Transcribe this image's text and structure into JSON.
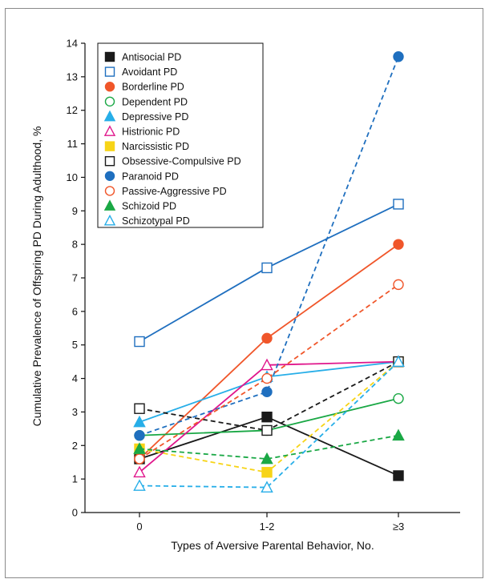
{
  "chart_data": {
    "type": "line",
    "title": "",
    "xlabel": "Types of Aversive Parental Behavior, No.",
    "ylabel": "Cumulative Prevalence of Offspring PD During Adulthood, %",
    "categories": [
      "0",
      "1-2",
      "≥3"
    ],
    "ylim": [
      0,
      14
    ],
    "yticks": [
      "0",
      "1",
      "2",
      "3",
      "4",
      "5",
      "6",
      "7",
      "8",
      "9",
      "10",
      "11",
      "12",
      "13",
      "14"
    ],
    "grid": false,
    "legend_position": "top-left",
    "series": [
      {
        "name": "Antisocial PD",
        "values": [
          1.6,
          2.85,
          1.1
        ],
        "color": "#1a1a1a",
        "marker": "square",
        "filled": true,
        "dashed": false
      },
      {
        "name": "Avoidant PD",
        "values": [
          5.1,
          7.3,
          9.2
        ],
        "color": "#1f6fbf",
        "marker": "square",
        "filled": false,
        "dashed": false
      },
      {
        "name": "Borderline PD",
        "values": [
          1.6,
          5.2,
          8.0
        ],
        "color": "#f0562a",
        "marker": "circle",
        "filled": true,
        "dashed": false
      },
      {
        "name": "Dependent PD",
        "values": [
          2.3,
          2.45,
          3.4
        ],
        "color": "#1aa845",
        "marker": "circle",
        "filled": false,
        "dashed": false
      },
      {
        "name": "Depressive PD",
        "values": [
          2.7,
          4.05,
          4.5
        ],
        "color": "#27aee8",
        "marker": "triangle",
        "filled": true,
        "dashed": false
      },
      {
        "name": "Histrionic PD",
        "values": [
          1.2,
          4.4,
          4.5
        ],
        "color": "#e0178c",
        "marker": "triangle",
        "filled": false,
        "dashed": false
      },
      {
        "name": "Narcissistic PD",
        "values": [
          1.9,
          1.2,
          4.5
        ],
        "color": "#f7d417",
        "marker": "square",
        "filled": true,
        "dashed": true
      },
      {
        "name": "Obsessive-Compulsive PD",
        "values": [
          3.1,
          2.45,
          4.5
        ],
        "color": "#1a1a1a",
        "marker": "square",
        "filled": false,
        "dashed": true
      },
      {
        "name": "Paranoid PD",
        "values": [
          2.3,
          3.6,
          13.6
        ],
        "color": "#1f6fbf",
        "marker": "circle",
        "filled": true,
        "dashed": true
      },
      {
        "name": "Passive-Aggressive PD",
        "values": [
          1.6,
          4.0,
          6.8
        ],
        "color": "#f0562a",
        "marker": "circle",
        "filled": false,
        "dashed": true
      },
      {
        "name": "Schizoid PD",
        "values": [
          1.9,
          1.6,
          2.3
        ],
        "color": "#1aa845",
        "marker": "triangle",
        "filled": true,
        "dashed": true
      },
      {
        "name": "Schizotypal PD",
        "values": [
          0.8,
          0.75,
          4.5
        ],
        "color": "#27aee8",
        "marker": "triangle",
        "filled": false,
        "dashed": true
      }
    ]
  }
}
